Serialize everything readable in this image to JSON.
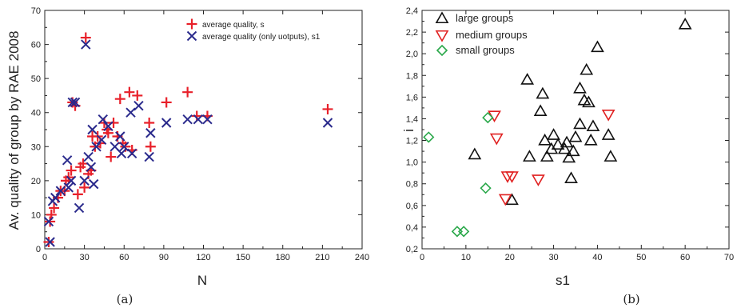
{
  "chart_data": [
    {
      "type": "scatter",
      "caption": "(a)",
      "xlabel": "N",
      "ylabel": "Av. quality of group by RAE 2008",
      "xlim": [
        0,
        240
      ],
      "ylim": [
        0,
        70
      ],
      "xticks": [
        "0",
        "30",
        "60",
        "90",
        "120",
        "150",
        "180",
        "210",
        "240"
      ],
      "yticks": [
        "0",
        "10",
        "20",
        "30",
        "40",
        "50",
        "60",
        "70"
      ],
      "legend_position": "top-right",
      "series": [
        {
          "name": "average quality, s",
          "marker": "plus",
          "color": "#e8202a",
          "points": [
            [
              3,
              2
            ],
            [
              4,
              8
            ],
            [
              5,
              10
            ],
            [
              7,
              12
            ],
            [
              10,
              15
            ],
            [
              12,
              17
            ],
            [
              15,
              17
            ],
            [
              16,
              20
            ],
            [
              18,
              21
            ],
            [
              20,
              23
            ],
            [
              21,
              43
            ],
            [
              23,
              42
            ],
            [
              25,
              16
            ],
            [
              27,
              24
            ],
            [
              29,
              25
            ],
            [
              30,
              18
            ],
            [
              31,
              62
            ],
            [
              33,
              22
            ],
            [
              35,
              23
            ],
            [
              36,
              33
            ],
            [
              38,
              30
            ],
            [
              40,
              33
            ],
            [
              42,
              31
            ],
            [
              45,
              37
            ],
            [
              47,
              35
            ],
            [
              48,
              34
            ],
            [
              50,
              27
            ],
            [
              52,
              37
            ],
            [
              55,
              33
            ],
            [
              57,
              44
            ],
            [
              59,
              31
            ],
            [
              61,
              30
            ],
            [
              64,
              46
            ],
            [
              66,
              29
            ],
            [
              70,
              45
            ],
            [
              79,
              37
            ],
            [
              80,
              30
            ],
            [
              92,
              43
            ],
            [
              108,
              46
            ],
            [
              115,
              39
            ],
            [
              123,
              39
            ],
            [
              214,
              41
            ]
          ]
        },
        {
          "name": "average quality (only uotputs), s1",
          "marker": "x",
          "color": "#2a2a8c",
          "points": [
            [
              3,
              8
            ],
            [
              4,
              2
            ],
            [
              6,
              14
            ],
            [
              8,
              15
            ],
            [
              12,
              17
            ],
            [
              17,
              26
            ],
            [
              18,
              18
            ],
            [
              20,
              20
            ],
            [
              21,
              43
            ],
            [
              23,
              43
            ],
            [
              26,
              12
            ],
            [
              30,
              20
            ],
            [
              31,
              60
            ],
            [
              33,
              27
            ],
            [
              35,
              24
            ],
            [
              36,
              35
            ],
            [
              37,
              19
            ],
            [
              39,
              30
            ],
            [
              43,
              32
            ],
            [
              44,
              38
            ],
            [
              48,
              36
            ],
            [
              53,
              30
            ],
            [
              57,
              33
            ],
            [
              58,
              28
            ],
            [
              60,
              30
            ],
            [
              65,
              40
            ],
            [
              66,
              28
            ],
            [
              71,
              42
            ],
            [
              79,
              27
            ],
            [
              80,
              34
            ],
            [
              92,
              37
            ],
            [
              108,
              38
            ],
            [
              116,
              38
            ],
            [
              123,
              38
            ],
            [
              214,
              37
            ]
          ]
        }
      ]
    },
    {
      "type": "scatter",
      "caption": "(b)",
      "xlabel": "s1",
      "ylabel": "i",
      "xlim": [
        0,
        70
      ],
      "ylim": [
        0.2,
        2.4
      ],
      "xticks": [
        "0",
        "10",
        "20",
        "30",
        "40",
        "50",
        "60",
        "70"
      ],
      "yticks": [
        "0,2",
        "0,4",
        "0,6",
        "0,8",
        "1,0",
        "1,2",
        "1,4",
        "1,6",
        "1,8",
        "2,0",
        "2,2",
        "2,4"
      ],
      "legend_position": "top-left",
      "series": [
        {
          "name": "large groups",
          "marker": "triangle-up",
          "color": "#111111",
          "points": [
            [
              12,
              1.07
            ],
            [
              20.5,
              0.65
            ],
            [
              24,
              1.76
            ],
            [
              24.5,
              1.05
            ],
            [
              27,
              1.47
            ],
            [
              27.5,
              1.63
            ],
            [
              28,
              1.2
            ],
            [
              28.5,
              1.05
            ],
            [
              29.5,
              1.12
            ],
            [
              30,
              1.25
            ],
            [
              31,
              1.16
            ],
            [
              32.5,
              1.12
            ],
            [
              33,
              1.18
            ],
            [
              33.5,
              1.04
            ],
            [
              34,
              0.85
            ],
            [
              34.5,
              1.1
            ],
            [
              35,
              1.23
            ],
            [
              36,
              1.35
            ],
            [
              36,
              1.68
            ],
            [
              37,
              1.57
            ],
            [
              37.5,
              1.85
            ],
            [
              38,
              1.55
            ],
            [
              38.5,
              1.2
            ],
            [
              39,
              1.33
            ],
            [
              40,
              2.06
            ],
            [
              42.5,
              1.25
            ],
            [
              43,
              1.05
            ],
            [
              60,
              2.27
            ]
          ]
        },
        {
          "name": "medium groups",
          "marker": "triangle-down",
          "color": "#e02020",
          "points": [
            [
              16.5,
              1.43
            ],
            [
              17,
              1.22
            ],
            [
              19,
              0.66
            ],
            [
              19.5,
              0.87
            ],
            [
              20.5,
              0.87
            ],
            [
              26.5,
              0.84
            ],
            [
              42.5,
              1.44
            ]
          ]
        },
        {
          "name": "small groups",
          "marker": "diamond",
          "color": "#2aa84a",
          "points": [
            [
              1.5,
              1.23
            ],
            [
              8,
              0.36
            ],
            [
              9.5,
              0.36
            ],
            [
              14.5,
              0.76
            ],
            [
              15,
              1.41
            ]
          ]
        }
      ]
    }
  ]
}
